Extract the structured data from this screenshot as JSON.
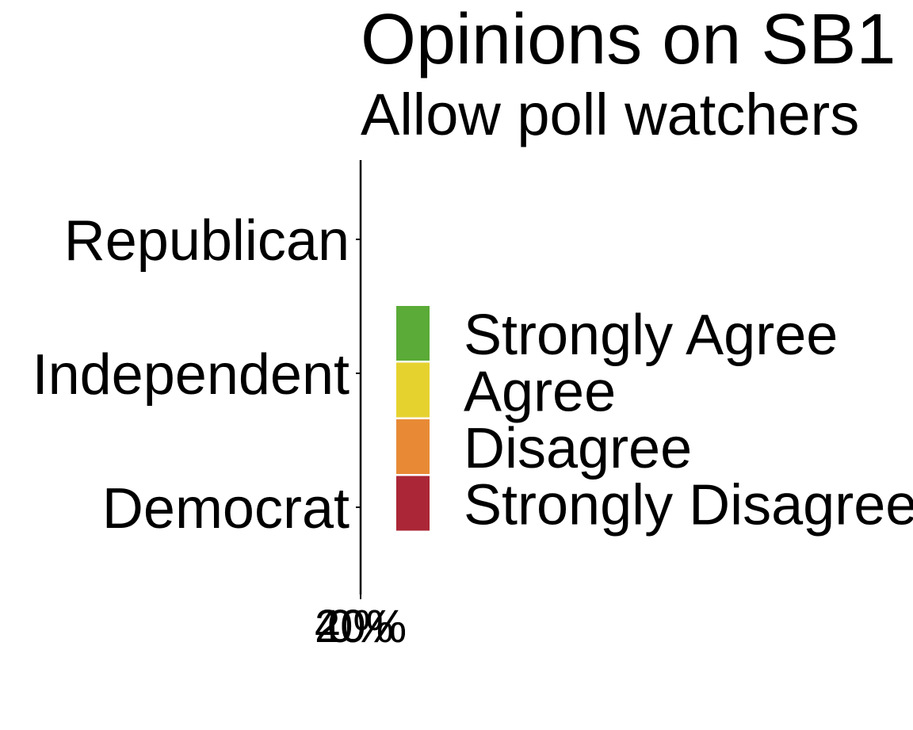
{
  "chart_data": {
    "type": "bar",
    "orientation": "horizontal",
    "stacked": true,
    "title": "Opinions on SB1",
    "subtitle": "Allow poll watchers",
    "categories": [
      "Republican",
      "Independent",
      "Democrat"
    ],
    "series": [
      {
        "name": "Strongly Agree",
        "color": "#5aab37"
      },
      {
        "name": "Agree",
        "color": "#e6d22f"
      },
      {
        "name": "Disagree",
        "color": "#e88a35"
      },
      {
        "name": "Strongly Disagree",
        "color": "#ab2636"
      }
    ],
    "xlim": [
      0,
      40
    ],
    "xticks": [
      {
        "value": 0,
        "label": "0%"
      },
      {
        "value": 20,
        "label": "20%"
      },
      {
        "value": 40,
        "label": "40%"
      }
    ]
  }
}
